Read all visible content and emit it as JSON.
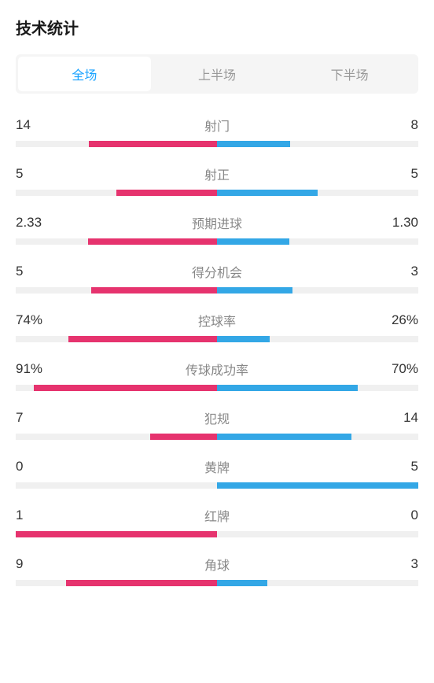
{
  "title": "技术统计",
  "tabs": {
    "items": [
      {
        "label": "全场",
        "active": true
      },
      {
        "label": "上半场",
        "active": false
      },
      {
        "label": "下半场",
        "active": false
      }
    ]
  },
  "colors": {
    "left": "#e6336e",
    "right": "#33a7e6",
    "track": "#f0f0f0",
    "tab_active_bg": "#ffffff",
    "tab_inactive_bg": "#f5f5f5",
    "tab_active_text": "#1aa3ff",
    "tab_inactive_text": "#999",
    "stat_name": "#888"
  },
  "stats": [
    {
      "name": "射门",
      "left_value": "14",
      "right_value": "8",
      "left_pct": 63.6,
      "right_pct": 36.4
    },
    {
      "name": "射正",
      "left_value": "5",
      "right_value": "5",
      "left_pct": 50,
      "right_pct": 50
    },
    {
      "name": "预期进球",
      "left_value": "2.33",
      "right_value": "1.30",
      "left_pct": 64.2,
      "right_pct": 35.8
    },
    {
      "name": "得分机会",
      "left_value": "5",
      "right_value": "3",
      "left_pct": 62.5,
      "right_pct": 37.5
    },
    {
      "name": "控球率",
      "left_value": "74%",
      "right_value": "26%",
      "left_pct": 74,
      "right_pct": 26
    },
    {
      "name": "传球成功率",
      "left_value": "91%",
      "right_value": "70%",
      "left_pct": 91,
      "right_pct": 70
    },
    {
      "name": "犯规",
      "left_value": "7",
      "right_value": "14",
      "left_pct": 33.3,
      "right_pct": 66.7
    },
    {
      "name": "黄牌",
      "left_value": "0",
      "right_value": "5",
      "left_pct": 0,
      "right_pct": 100
    },
    {
      "name": "红牌",
      "left_value": "1",
      "right_value": "0",
      "left_pct": 100,
      "right_pct": 0
    },
    {
      "name": "角球",
      "left_value": "9",
      "right_value": "3",
      "left_pct": 75,
      "right_pct": 25
    }
  ]
}
